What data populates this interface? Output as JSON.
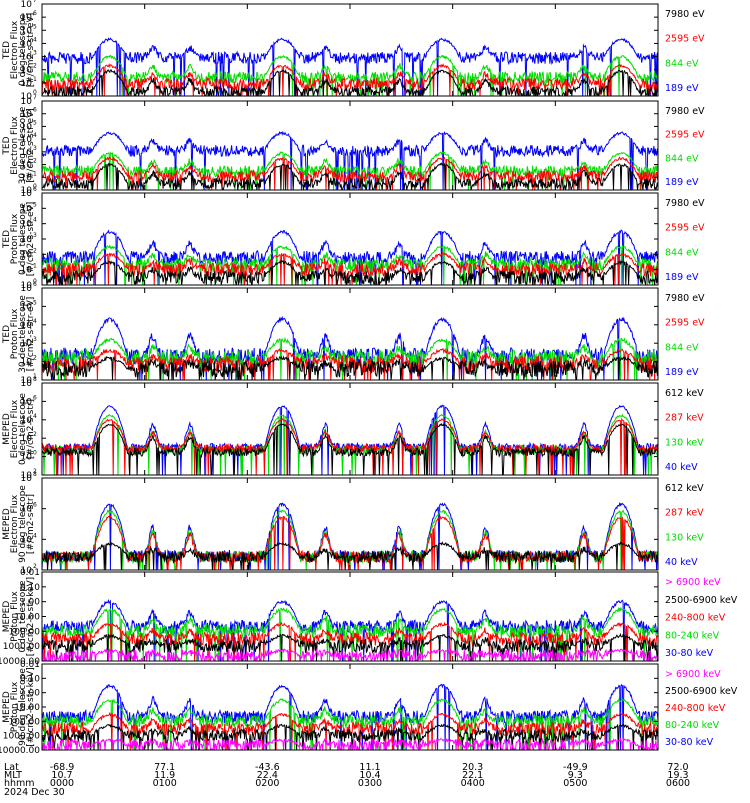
{
  "colors": {
    "blue": "#0000ff",
    "red": "#ff0000",
    "green": "#00dd00",
    "black": "#000000",
    "magenta": "#ff00ff"
  },
  "chart_data": [
    {
      "type": "line",
      "ylabel": [
        "TED",
        "Electron Flux",
        "0 deg telescope",
        "[#/cm2-s-str-eV]"
      ],
      "log_scale": true,
      "yticks": [
        "10^0",
        "10^1",
        "10^2",
        "10^3",
        "10^4",
        "10^5",
        "10^6",
        "10^7"
      ],
      "ylim": [
        1,
        10000000
      ],
      "series": [
        {
          "name": "7980 eV",
          "color": "#000000",
          "peak": 80,
          "base": 2
        },
        {
          "name": "2595 eV",
          "color": "#ff0000",
          "peak": 200,
          "base": 8
        },
        {
          "name": "844 eV",
          "color": "#00dd00",
          "peak": 1000,
          "base": 25
        },
        {
          "name": "189 eV",
          "color": "#0000ff",
          "peak": 20000,
          "base": 800
        }
      ]
    },
    {
      "type": "line",
      "ylabel": [
        "TED",
        "Electron Flux",
        "30 deg telescope",
        "[#/cm2-s-str-eV]"
      ],
      "log_scale": true,
      "yticks": [
        "10^0",
        "10^1",
        "10^2",
        "10^3",
        "10^4",
        "10^5",
        "10^6",
        "10^7"
      ],
      "ylim": [
        1,
        10000000
      ],
      "series": [
        {
          "name": "7980 eV",
          "color": "#000000",
          "peak": 100,
          "base": 3
        },
        {
          "name": "2595 eV",
          "color": "#ff0000",
          "peak": 300,
          "base": 12
        },
        {
          "name": "844 eV",
          "color": "#00dd00",
          "peak": 800,
          "base": 30
        },
        {
          "name": "189 eV",
          "color": "#0000ff",
          "peak": 30000,
          "base": 1200
        }
      ]
    },
    {
      "type": "line",
      "ylabel": [
        "TED",
        "Proton Flux",
        "0 deg telescope",
        "[#/cm2-s-str-eV]"
      ],
      "log_scale": true,
      "yticks": [
        "10^0",
        "10^1",
        "10^2",
        "10^3",
        "10^4",
        "10^5",
        "10^6"
      ],
      "ylim": [
        1,
        1000000
      ],
      "series": [
        {
          "name": "7980 eV",
          "color": "#000000",
          "peak": 30,
          "base": 3
        },
        {
          "name": "2595 eV",
          "color": "#ff0000",
          "peak": 100,
          "base": 10
        },
        {
          "name": "844 eV",
          "color": "#00dd00",
          "peak": 300,
          "base": 20
        },
        {
          "name": "189 eV",
          "color": "#0000ff",
          "peak": 3000,
          "base": 60
        }
      ]
    },
    {
      "type": "line",
      "ylabel": [
        "TED",
        "Proton Flux",
        "30 deg telescope",
        "[#/cm2-s-str-eV]"
      ],
      "log_scale": true,
      "yticks": [
        "10^1",
        "10^2",
        "10^3",
        "10^4",
        "10^5",
        "10^6"
      ],
      "ylim": [
        10,
        1000000
      ],
      "series": [
        {
          "name": "7980 eV",
          "color": "#000000",
          "peak": 150,
          "base": 40
        },
        {
          "name": "2595 eV",
          "color": "#ff0000",
          "peak": 400,
          "base": 70
        },
        {
          "name": "844 eV",
          "color": "#00dd00",
          "peak": 1500,
          "base": 150
        },
        {
          "name": "189 eV",
          "color": "#0000ff",
          "peak": 20000,
          "base": 200
        }
      ]
    },
    {
      "type": "line",
      "ylabel": [
        "MEPED",
        "Electron Flux",
        "0 deg telescope",
        "[#/cm2-s-str]"
      ],
      "log_scale": true,
      "yticks": [
        "10^2",
        "10^0",
        "10^2",
        "10^4",
        "10^6",
        "10^8"
      ],
      "ylim": [
        0.01,
        100000000
      ],
      "series": [
        {
          "name": "612 keV",
          "color": "#000000",
          "peak": 3000,
          "base": 3
        },
        {
          "name": "287 keV",
          "color": "#ff0000",
          "peak": 10000,
          "base": 8
        },
        {
          "name": "130 keV",
          "color": "#00dd00",
          "peak": 30000,
          "base": 5
        },
        {
          "name": "40 keV",
          "color": "#0000ff",
          "peak": 300000,
          "base": 10
        }
      ]
    },
    {
      "type": "line",
      "ylabel": [
        "MEPED",
        "Electron Flux",
        "90 deg telescope",
        "[#/cm2-s-str]"
      ],
      "log_scale": true,
      "yticks": [
        "10^2",
        "10^4",
        "10^6",
        "10^8"
      ],
      "ylim": [
        10,
        100000000
      ],
      "series": [
        {
          "name": "612 keV",
          "color": "#000000",
          "peak": 1000,
          "base": 100
        },
        {
          "name": "287 keV",
          "color": "#ff0000",
          "peak": 100000,
          "base": 100
        },
        {
          "name": "130 keV",
          "color": "#00dd00",
          "peak": 300000,
          "base": 100
        },
        {
          "name": "40 keV",
          "color": "#0000ff",
          "peak": 1000000,
          "base": 120
        }
      ]
    },
    {
      "type": "line",
      "ylabel": [
        "MEPED",
        "Proton Flux",
        "0 deg telescope",
        "[#/cm2-s-str-keV]"
      ],
      "log_scale": true,
      "yticks": [
        "10000.00",
        "1000.00",
        "100.00",
        "10.00",
        "1.00",
        "0.10",
        "0.01"
      ],
      "ylim": [
        0.01,
        10000
      ],
      "series": [
        {
          "name": "> 6900 keV",
          "color": "#ff00ff",
          "peak": 0.05,
          "base": 0.02
        },
        {
          "name": "2500-6900 keV",
          "color": "#000000",
          "peak": 0.5,
          "base": 0.1
        },
        {
          "name": "240-800 keV",
          "color": "#ff0000",
          "peak": 3,
          "base": 0.3
        },
        {
          "name": "80-240 keV",
          "color": "#00dd00",
          "peak": 30,
          "base": 1
        },
        {
          "name": "30-80 keV",
          "color": "#0000ff",
          "peak": 100,
          "base": 2
        }
      ]
    },
    {
      "type": "line",
      "ylabel": [
        "MEPED",
        "Proton Flux",
        "90 deg telescope",
        "[#/cm2-s-str-keV]"
      ],
      "log_scale": true,
      "yticks": [
        "10000.00",
        "1000.00",
        "100.00",
        "10.00",
        "1.00",
        "0.10",
        "0.01"
      ],
      "ylim": [
        0.01,
        10000
      ],
      "series": [
        {
          "name": "> 6900 keV",
          "color": "#ff00ff",
          "peak": 0.05,
          "base": 0.02
        },
        {
          "name": "2500-6900 keV",
          "color": "#000000",
          "peak": 0.5,
          "base": 0.1
        },
        {
          "name": "240-800 keV",
          "color": "#ff0000",
          "peak": 3,
          "base": 0.3
        },
        {
          "name": "80-240 keV",
          "color": "#00dd00",
          "peak": 30,
          "base": 1
        },
        {
          "name": "30-80 keV",
          "color": "#0000ff",
          "peak": 300,
          "base": 2
        }
      ]
    }
  ],
  "xaxis": {
    "row_labels": [
      "Lat",
      "MLT",
      "hhmm"
    ],
    "columns": [
      {
        "lat": "-68.9",
        "mlt": "10.7",
        "hhmm": "0000"
      },
      {
        "lat": "77.1",
        "mlt": "11.9",
        "hhmm": "0100"
      },
      {
        "lat": "-43.6",
        "mlt": "22.4",
        "hhmm": "0200"
      },
      {
        "lat": "11.1",
        "mlt": "10.4",
        "hhmm": "0300"
      },
      {
        "lat": "20.3",
        "mlt": "22.1",
        "hhmm": "0400"
      },
      {
        "lat": "-49.9",
        "mlt": "9.3",
        "hhmm": "0500"
      },
      {
        "lat": "72.0",
        "mlt": "19.3",
        "hhmm": "0600"
      }
    ],
    "date": "2024 Dec 30"
  }
}
